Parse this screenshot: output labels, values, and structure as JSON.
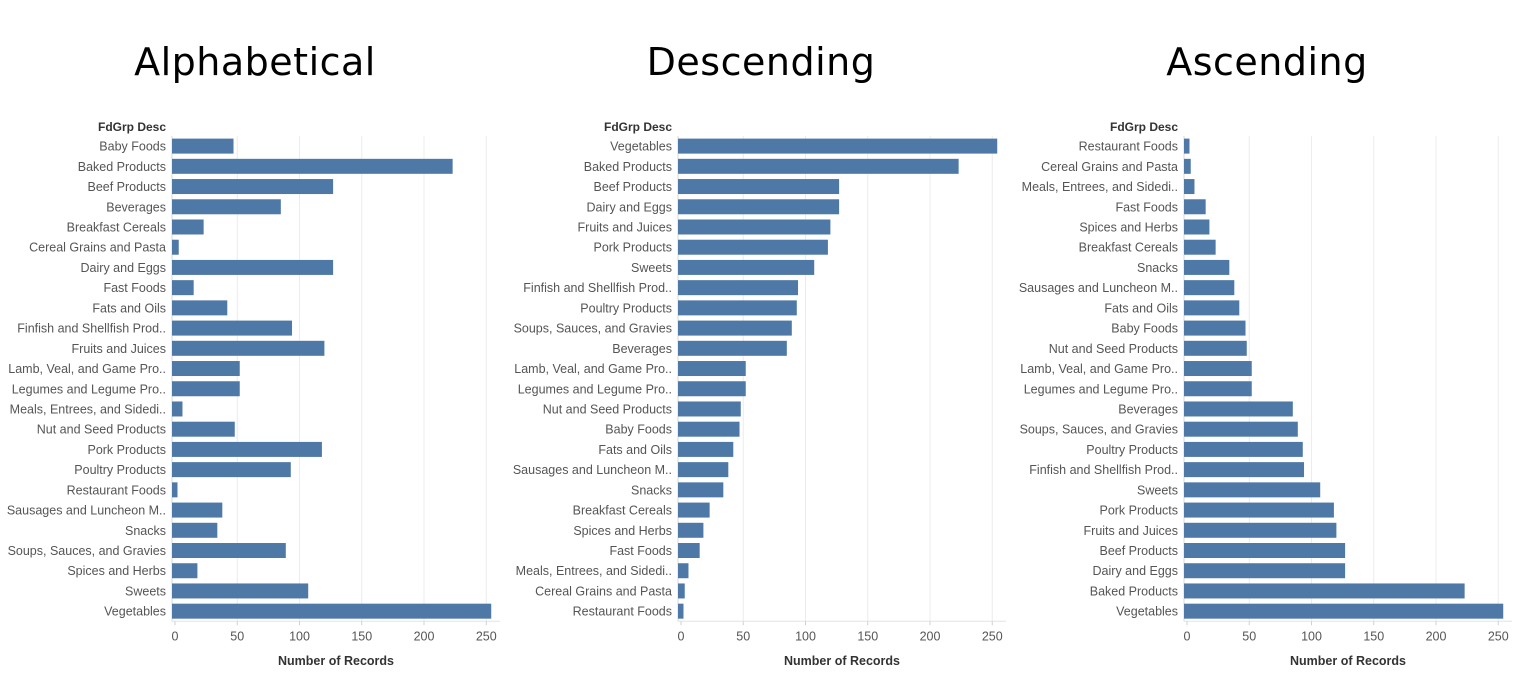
{
  "chart_data": [
    {
      "type": "bar",
      "title": "Alphabetical",
      "orientation": "horizontal",
      "row_header": "FdGrp Desc",
      "xlabel": "Number of Records",
      "xlim": [
        0,
        265
      ],
      "xticks": [
        0,
        50,
        100,
        150,
        200,
        250
      ],
      "grid": true,
      "categories": [
        "Baby Foods",
        "Baked Products",
        "Beef Products",
        "Beverages",
        "Breakfast Cereals",
        "Cereal Grains and Pasta",
        "Dairy and Eggs",
        "Fast Foods",
        "Fats and Oils",
        "Finfish and Shellfish Prod..",
        "Fruits and Juices",
        "Lamb, Veal, and Game Pro..",
        "Legumes and Legume Pro..",
        "Meals, Entrees, and Sidedi..",
        "Nut and Seed Products",
        "Pork Products",
        "Poultry Products",
        "Restaurant Foods",
        "Sausages and Luncheon M..",
        "Snacks",
        "Soups, Sauces, and Gravies",
        "Spices and Herbs",
        "Sweets",
        "Vegetables"
      ],
      "values": [
        47,
        223,
        127,
        85,
        23,
        3,
        127,
        15,
        42,
        94,
        120,
        52,
        52,
        6,
        48,
        118,
        93,
        2,
        38,
        34,
        89,
        18,
        107,
        254
      ],
      "bar_color": "#4e79a7"
    },
    {
      "type": "bar",
      "title": "Descending",
      "orientation": "horizontal",
      "row_header": "FdGrp Desc",
      "xlabel": "Number of Records",
      "xlim": [
        0,
        265
      ],
      "xticks": [
        0,
        50,
        100,
        150,
        200,
        250
      ],
      "grid": true,
      "categories": [
        "Vegetables",
        "Baked Products",
        "Beef Products",
        "Dairy and Eggs",
        "Fruits and Juices",
        "Pork Products",
        "Sweets",
        "Finfish and Shellfish Prod..",
        "Poultry Products",
        "Soups, Sauces, and Gravies",
        "Beverages",
        "Lamb, Veal, and Game Pro..",
        "Legumes and Legume Pro..",
        "Nut and Seed Products",
        "Baby Foods",
        "Fats and Oils",
        "Sausages and Luncheon M..",
        "Snacks",
        "Breakfast Cereals",
        "Spices and Herbs",
        "Fast Foods",
        "Meals, Entrees, and Sidedi..",
        "Cereal Grains and Pasta",
        "Restaurant Foods"
      ],
      "values": [
        254,
        223,
        127,
        127,
        120,
        118,
        107,
        94,
        93,
        89,
        85,
        52,
        52,
        48,
        47,
        42,
        38,
        34,
        23,
        18,
        15,
        6,
        3,
        2
      ],
      "bar_color": "#4e79a7"
    },
    {
      "type": "bar",
      "title": "Ascending",
      "orientation": "horizontal",
      "row_header": "FdGrp Desc",
      "xlabel": "Number of Records",
      "xlim": [
        0,
        265
      ],
      "xticks": [
        0,
        50,
        100,
        150,
        200,
        250
      ],
      "grid": true,
      "categories": [
        "Restaurant Foods",
        "Cereal Grains and Pasta",
        "Meals, Entrees, and Sidedi..",
        "Fast Foods",
        "Spices and Herbs",
        "Breakfast Cereals",
        "Snacks",
        "Sausages and Luncheon M..",
        "Fats and Oils",
        "Baby Foods",
        "Nut and Seed Products",
        "Lamb, Veal, and Game Pro..",
        "Legumes and Legume Pro..",
        "Beverages",
        "Soups, Sauces, and Gravies",
        "Poultry Products",
        "Finfish and Shellfish Prod..",
        "Sweets",
        "Pork Products",
        "Fruits and Juices",
        "Beef Products",
        "Dairy and Eggs",
        "Baked Products",
        "Vegetables"
      ],
      "values": [
        2,
        3,
        6,
        15,
        18,
        23,
        34,
        38,
        42,
        47,
        48,
        52,
        52,
        85,
        89,
        93,
        94,
        107,
        118,
        120,
        127,
        127,
        223,
        254
      ],
      "bar_color": "#4e79a7"
    }
  ]
}
